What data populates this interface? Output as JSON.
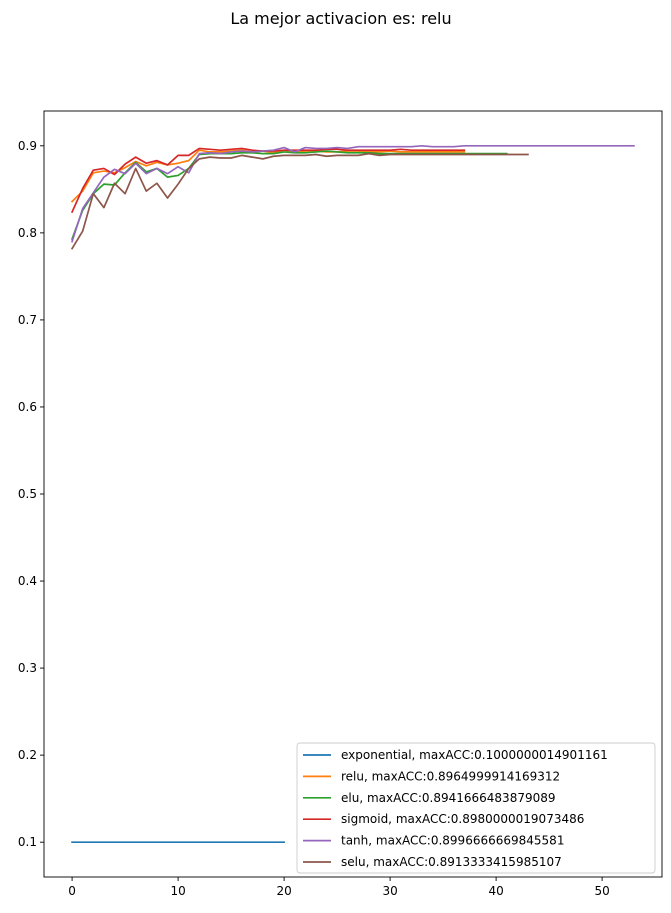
{
  "figure": {
    "title": "La mejor activacion es: relu"
  },
  "chart_data": {
    "type": "line",
    "title": "La mejor activacion es: relu",
    "xlabel": "",
    "ylabel": "",
    "xlim": [
      -2.65,
      55.65
    ],
    "ylim": [
      0.06,
      0.94
    ],
    "xticks": [
      0,
      10,
      20,
      30,
      40,
      50
    ],
    "yticks": [
      0.1,
      0.2,
      0.3,
      0.4,
      0.5,
      0.6,
      0.7,
      0.8,
      0.9
    ],
    "xtick_labels": [
      "0",
      "10",
      "20",
      "30",
      "40",
      "50"
    ],
    "ytick_labels": [
      "0.1",
      "0.2",
      "0.3",
      "0.4",
      "0.5",
      "0.6",
      "0.7",
      "0.8",
      "0.9"
    ],
    "grid": false,
    "legend_position": "lower-right",
    "series": [
      {
        "name": "exponential, maxACC:0.1000000014901161",
        "color": "#1f77b4",
        "x": [
          0,
          20
        ],
        "y": [
          0.1,
          0.1
        ]
      },
      {
        "name": "relu, maxACC:0.8964999914169312",
        "color": "#ff7f0e",
        "x": [
          0,
          1,
          2,
          3,
          4,
          5,
          6,
          7,
          8,
          9,
          10,
          11,
          12,
          13,
          14,
          15,
          16,
          17,
          18,
          19,
          20,
          21,
          22,
          23,
          24,
          25,
          26,
          27,
          28,
          29,
          30,
          31,
          32,
          33,
          34,
          35,
          36,
          37
        ],
        "y": [
          0.836,
          0.848,
          0.869,
          0.871,
          0.869,
          0.875,
          0.882,
          0.877,
          0.881,
          0.878,
          0.88,
          0.883,
          0.895,
          0.893,
          0.893,
          0.894,
          0.895,
          0.893,
          0.894,
          0.892,
          0.895,
          0.893,
          0.894,
          0.894,
          0.893,
          0.893,
          0.894,
          0.894,
          0.893,
          0.893,
          0.894,
          0.893,
          0.893,
          0.893,
          0.893,
          0.893,
          0.893,
          0.893
        ]
      },
      {
        "name": "elu, maxACC:0.8941666483879089",
        "color": "#2ca02c",
        "x": [
          0,
          1,
          2,
          3,
          4,
          5,
          6,
          7,
          8,
          9,
          10,
          11,
          12,
          13,
          14,
          15,
          16,
          17,
          18,
          19,
          20,
          21,
          22,
          23,
          24,
          25,
          26,
          27,
          28,
          29,
          30,
          31,
          32,
          33,
          34,
          35,
          36,
          37,
          38,
          39,
          40,
          41
        ],
        "y": [
          0.793,
          0.826,
          0.845,
          0.856,
          0.855,
          0.869,
          0.881,
          0.87,
          0.874,
          0.864,
          0.866,
          0.874,
          0.89,
          0.891,
          0.891,
          0.891,
          0.892,
          0.892,
          0.891,
          0.891,
          0.893,
          0.892,
          0.892,
          0.893,
          0.894,
          0.893,
          0.892,
          0.892,
          0.892,
          0.891,
          0.891,
          0.891,
          0.891,
          0.891,
          0.891,
          0.891,
          0.891,
          0.891,
          0.891,
          0.891,
          0.891,
          0.891
        ]
      },
      {
        "name": "sigmoid, maxACC:0.8980000019073486",
        "color": "#d62728",
        "x": [
          0,
          1,
          2,
          3,
          4,
          5,
          6,
          7,
          8,
          9,
          10,
          11,
          12,
          13,
          14,
          15,
          16,
          17,
          18,
          19,
          20,
          21,
          22,
          23,
          24,
          25,
          26,
          27,
          28,
          29,
          30,
          31,
          32,
          33,
          34,
          35,
          36,
          37
        ],
        "y": [
          0.824,
          0.851,
          0.872,
          0.874,
          0.867,
          0.879,
          0.887,
          0.88,
          0.883,
          0.878,
          0.889,
          0.889,
          0.897,
          0.896,
          0.895,
          0.896,
          0.897,
          0.895,
          0.894,
          0.894,
          0.895,
          0.895,
          0.895,
          0.895,
          0.896,
          0.896,
          0.895,
          0.895,
          0.895,
          0.895,
          0.895,
          0.896,
          0.895,
          0.895,
          0.895,
          0.895,
          0.895,
          0.895
        ]
      },
      {
        "name": "tanh, maxACC:0.8996666669845581",
        "color": "#9467bd",
        "x": [
          0,
          1,
          2,
          3,
          4,
          5,
          6,
          7,
          8,
          9,
          10,
          11,
          12,
          13,
          14,
          15,
          16,
          17,
          18,
          19,
          20,
          21,
          22,
          23,
          24,
          25,
          26,
          27,
          28,
          29,
          30,
          31,
          32,
          33,
          34,
          35,
          36,
          37,
          38,
          39,
          40,
          41,
          42,
          43,
          44,
          45,
          46,
          47,
          48,
          49,
          50,
          51,
          52,
          53
        ],
        "y": [
          0.79,
          0.828,
          0.846,
          0.864,
          0.873,
          0.868,
          0.88,
          0.868,
          0.874,
          0.868,
          0.876,
          0.869,
          0.891,
          0.892,
          0.891,
          0.893,
          0.894,
          0.893,
          0.894,
          0.895,
          0.898,
          0.893,
          0.898,
          0.897,
          0.897,
          0.898,
          0.897,
          0.899,
          0.899,
          0.899,
          0.899,
          0.899,
          0.899,
          0.9,
          0.899,
          0.899,
          0.899,
          0.9,
          0.9,
          0.9,
          0.9,
          0.9,
          0.9,
          0.9,
          0.9,
          0.9,
          0.9,
          0.9,
          0.9,
          0.9,
          0.9,
          0.9,
          0.9,
          0.9
        ]
      },
      {
        "name": "selu, maxACC:0.8913333415985107",
        "color": "#8c564b",
        "x": [
          0,
          1,
          2,
          3,
          4,
          5,
          6,
          7,
          8,
          9,
          10,
          11,
          12,
          13,
          14,
          15,
          16,
          17,
          18,
          19,
          20,
          21,
          22,
          23,
          24,
          25,
          26,
          27,
          28,
          29,
          30,
          31,
          32,
          33,
          34,
          35,
          36,
          37,
          38,
          39,
          40,
          41,
          42,
          43
        ],
        "y": [
          0.782,
          0.802,
          0.845,
          0.829,
          0.857,
          0.845,
          0.874,
          0.848,
          0.857,
          0.84,
          0.856,
          0.874,
          0.885,
          0.887,
          0.886,
          0.886,
          0.889,
          0.887,
          0.885,
          0.888,
          0.889,
          0.889,
          0.889,
          0.89,
          0.888,
          0.889,
          0.889,
          0.889,
          0.891,
          0.889,
          0.89,
          0.89,
          0.89,
          0.89,
          0.89,
          0.89,
          0.89,
          0.89,
          0.89,
          0.89,
          0.89,
          0.89,
          0.89,
          0.89
        ]
      }
    ]
  }
}
